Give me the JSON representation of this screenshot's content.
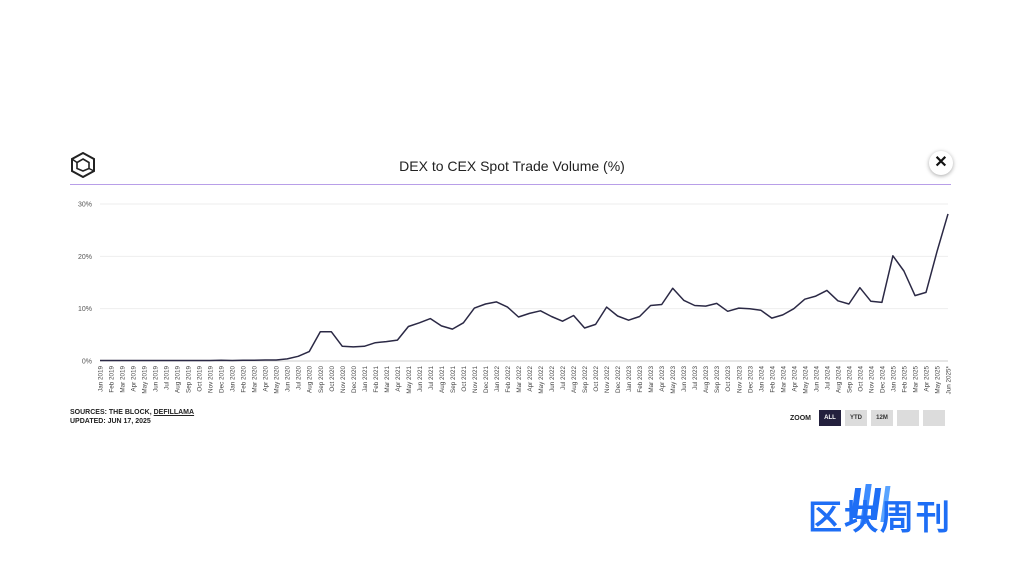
{
  "header": {
    "title": "DEX to CEX Spot Trade Volume (%)",
    "close_label": "✕",
    "logo_icon": "the-block-hex-logo"
  },
  "footer": {
    "sources_prefix": "SOURCES: THE BLOCK, ",
    "sources_link": "DEFILLAMA",
    "updated": "UPDATED: JUN 17, 2025"
  },
  "zoom": {
    "label": "ZOOM",
    "buttons": [
      "ALL",
      "YTD",
      "12M",
      "",
      ""
    ],
    "active": "ALL"
  },
  "watermark": {
    "text": "区块周刊",
    "color": "#1e6ef5"
  },
  "colors": {
    "line": "#2b2945",
    "rule": "#b89ee8",
    "grid": "#eeeeee"
  },
  "chart_data": {
    "type": "line",
    "title": "DEX to CEX Spot Trade Volume (%)",
    "xlabel": "",
    "ylabel": "",
    "ylim": [
      0,
      30
    ],
    "yticks": [
      "0%",
      "10%",
      "20%",
      "30%"
    ],
    "grid": true,
    "categories": [
      "Jan 2019",
      "Feb 2019",
      "Mar 2019",
      "Apr 2019",
      "May 2019",
      "Jun 2019",
      "Jul 2019",
      "Aug 2019",
      "Sep 2019",
      "Oct 2019",
      "Nov 2019",
      "Dec 2019",
      "Jan 2020",
      "Feb 2020",
      "Mar 2020",
      "Apr 2020",
      "May 2020",
      "Jun 2020",
      "Jul 2020",
      "Aug 2020",
      "Sep 2020",
      "Oct 2020",
      "Nov 2020",
      "Dec 2020",
      "Jan 2021",
      "Feb 2021",
      "Mar 2021",
      "Apr 2021",
      "May 2021",
      "Jun 2021",
      "Jul 2021",
      "Aug 2021",
      "Sep 2021",
      "Oct 2021",
      "Nov 2021",
      "Dec 2021",
      "Jan 2022",
      "Feb 2022",
      "Mar 2022",
      "Apr 2022",
      "May 2022",
      "Jun 2022",
      "Jul 2022",
      "Aug 2022",
      "Sep 2022",
      "Oct 2022",
      "Nov 2022",
      "Dec 2022",
      "Jan 2023",
      "Feb 2023",
      "Mar 2023",
      "Apr 2023",
      "May 2023",
      "Jun 2023",
      "Jul 2023",
      "Aug 2023",
      "Sep 2023",
      "Oct 2023",
      "Nov 2023",
      "Dec 2023",
      "Jan 2024",
      "Feb 2024",
      "Mar 2024",
      "Apr 2024",
      "May 2024",
      "Jun 2024",
      "Jul 2024",
      "Aug 2024",
      "Sep 2024",
      "Oct 2024",
      "Nov 2024",
      "Dec 2024",
      "Jan 2025",
      "Feb 2025",
      "Mar 2025",
      "Apr 2025",
      "May 2025",
      "Jun 2025*"
    ],
    "values": [
      0.1,
      0.1,
      0.1,
      0.1,
      0.1,
      0.1,
      0.1,
      0.1,
      0.1,
      0.1,
      0.1,
      0.15,
      0.1,
      0.15,
      0.15,
      0.2,
      0.2,
      0.4,
      0.9,
      1.8,
      5.6,
      5.6,
      2.8,
      2.7,
      2.8,
      3.5,
      3.7,
      4.0,
      6.6,
      7.3,
      8.1,
      6.7,
      6.1,
      7.3,
      10.1,
      10.9,
      11.3,
      10.3,
      8.4,
      9.1,
      9.6,
      8.5,
      7.6,
      8.7,
      6.3,
      7.0,
      10.3,
      8.6,
      7.8,
      8.5,
      10.6,
      10.8,
      13.9,
      11.6,
      10.6,
      10.5,
      11.0,
      9.5,
      10.1,
      10.0,
      9.7,
      8.2,
      8.8,
      10.0,
      11.8,
      12.4,
      13.5,
      11.5,
      10.9,
      14.0,
      11.4,
      11.2,
      20.1,
      17.2,
      12.5,
      13.1,
      20.9,
      28.1
    ]
  }
}
